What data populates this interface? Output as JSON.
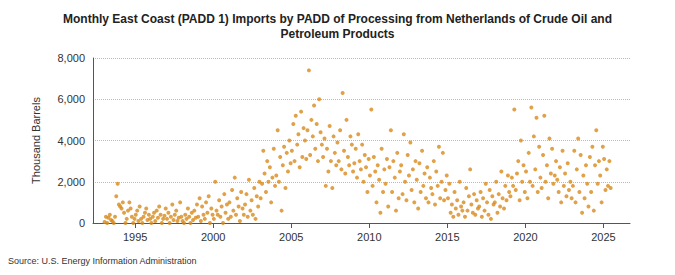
{
  "chart_data": {
    "type": "scatter",
    "title": "Monthly East Coast (PADD 1) Imports by PADD of Processing from Netherlands of Crude Oil and\nPetroleum Products",
    "y_label": "Thousand Barrels",
    "source": "Source: U.S. Energy Information Administration",
    "color": "#d88a1a",
    "marker": "circle",
    "grid": true,
    "xlim": [
      1992.3,
      2026.7
    ],
    "xticks": [
      1995,
      2000,
      2005,
      2010,
      2015,
      2020,
      2025
    ],
    "ylim": [
      0,
      8000
    ],
    "yticks": [
      0,
      {
        "value": 2000,
        "label": "2,000"
      },
      {
        "value": 4000,
        "label": "4,000"
      },
      {
        "value": 6000,
        "label": "6,000"
      },
      {
        "value": 8000,
        "label": "8,000"
      }
    ],
    "x": [
      1993.04,
      1993.13,
      1993.21,
      1993.29,
      1993.38,
      1993.46,
      1993.54,
      1993.63,
      1993.71,
      1993.79,
      1993.88,
      1993.96,
      1994.04,
      1994.13,
      1994.21,
      1994.29,
      1994.38,
      1994.46,
      1994.54,
      1994.63,
      1994.71,
      1994.79,
      1994.88,
      1994.96,
      1995.04,
      1995.13,
      1995.21,
      1995.29,
      1995.38,
      1995.46,
      1995.54,
      1995.63,
      1995.71,
      1995.79,
      1995.88,
      1995.96,
      1996.04,
      1996.13,
      1996.21,
      1996.29,
      1996.38,
      1996.46,
      1996.54,
      1996.63,
      1996.71,
      1996.79,
      1996.88,
      1996.96,
      1997.04,
      1997.13,
      1997.21,
      1997.29,
      1997.38,
      1997.46,
      1997.54,
      1997.63,
      1997.71,
      1997.79,
      1997.88,
      1997.96,
      1998.04,
      1998.13,
      1998.21,
      1998.29,
      1998.38,
      1998.46,
      1998.54,
      1998.63,
      1998.71,
      1998.79,
      1998.88,
      1998.96,
      1999.04,
      1999.13,
      1999.21,
      1999.29,
      1999.38,
      1999.46,
      1999.54,
      1999.63,
      1999.71,
      1999.79,
      1999.88,
      1999.96,
      2000.04,
      2000.13,
      2000.21,
      2000.29,
      2000.38,
      2000.46,
      2000.54,
      2000.63,
      2000.71,
      2000.79,
      2000.88,
      2000.96,
      2001.04,
      2001.13,
      2001.21,
      2001.29,
      2001.38,
      2001.46,
      2001.54,
      2001.63,
      2001.71,
      2001.79,
      2001.88,
      2001.96,
      2002.04,
      2002.13,
      2002.21,
      2002.29,
      2002.38,
      2002.46,
      2002.54,
      2002.63,
      2002.71,
      2002.79,
      2002.88,
      2002.96,
      2003.04,
      2003.13,
      2003.21,
      2003.29,
      2003.38,
      2003.46,
      2003.54,
      2003.63,
      2003.71,
      2003.79,
      2003.88,
      2003.96,
      2004.04,
      2004.13,
      2004.21,
      2004.29,
      2004.38,
      2004.46,
      2004.54,
      2004.63,
      2004.71,
      2004.79,
      2004.88,
      2004.96,
      2005.04,
      2005.13,
      2005.21,
      2005.29,
      2005.38,
      2005.46,
      2005.54,
      2005.63,
      2005.71,
      2005.79,
      2005.88,
      2005.96,
      2006.04,
      2006.13,
      2006.21,
      2006.29,
      2006.38,
      2006.46,
      2006.54,
      2006.63,
      2006.71,
      2006.79,
      2006.88,
      2006.96,
      2007.04,
      2007.13,
      2007.21,
      2007.29,
      2007.38,
      2007.46,
      2007.54,
      2007.63,
      2007.71,
      2007.79,
      2007.88,
      2007.96,
      2008.04,
      2008.13,
      2008.21,
      2008.29,
      2008.38,
      2008.46,
      2008.54,
      2008.63,
      2008.71,
      2008.79,
      2008.88,
      2008.96,
      2009.04,
      2009.13,
      2009.21,
      2009.29,
      2009.38,
      2009.46,
      2009.54,
      2009.63,
      2009.71,
      2009.79,
      2009.88,
      2009.96,
      2010.04,
      2010.13,
      2010.21,
      2010.29,
      2010.38,
      2010.46,
      2010.54,
      2010.63,
      2010.71,
      2010.79,
      2010.88,
      2010.96,
      2011.04,
      2011.13,
      2011.21,
      2011.29,
      2011.38,
      2011.46,
      2011.54,
      2011.63,
      2011.71,
      2011.79,
      2011.88,
      2011.96,
      2012.04,
      2012.13,
      2012.21,
      2012.29,
      2012.38,
      2012.46,
      2012.54,
      2012.63,
      2012.71,
      2012.79,
      2012.88,
      2012.96,
      2013.04,
      2013.13,
      2013.21,
      2013.29,
      2013.38,
      2013.46,
      2013.54,
      2013.63,
      2013.71,
      2013.79,
      2013.88,
      2013.96,
      2014.04,
      2014.13,
      2014.21,
      2014.29,
      2014.38,
      2014.46,
      2014.54,
      2014.63,
      2014.71,
      2014.79,
      2014.88,
      2014.96,
      2015.04,
      2015.13,
      2015.21,
      2015.29,
      2015.38,
      2015.46,
      2015.54,
      2015.63,
      2015.71,
      2015.79,
      2015.88,
      2015.96,
      2016.04,
      2016.13,
      2016.21,
      2016.29,
      2016.38,
      2016.46,
      2016.54,
      2016.63,
      2016.71,
      2016.79,
      2016.88,
      2016.96,
      2017.04,
      2017.13,
      2017.21,
      2017.29,
      2017.38,
      2017.46,
      2017.54,
      2017.63,
      2017.71,
      2017.79,
      2017.88,
      2017.96,
      2018.04,
      2018.13,
      2018.21,
      2018.29,
      2018.38,
      2018.46,
      2018.54,
      2018.63,
      2018.71,
      2018.79,
      2018.88,
      2018.96,
      2019.04,
      2019.13,
      2019.21,
      2019.29,
      2019.38,
      2019.46,
      2019.54,
      2019.63,
      2019.71,
      2019.79,
      2019.88,
      2019.96,
      2020.04,
      2020.13,
      2020.21,
      2020.29,
      2020.38,
      2020.46,
      2020.54,
      2020.63,
      2020.71,
      2020.79,
      2020.88,
      2020.96,
      2021.04,
      2021.13,
      2021.21,
      2021.29,
      2021.38,
      2021.46,
      2021.54,
      2021.63,
      2021.71,
      2021.79,
      2021.88,
      2021.96,
      2022.04,
      2022.13,
      2022.21,
      2022.29,
      2022.38,
      2022.46,
      2022.54,
      2022.63,
      2022.71,
      2022.79,
      2022.88,
      2022.96,
      2023.04,
      2023.13,
      2023.21,
      2023.29,
      2023.38,
      2023.46,
      2023.54,
      2023.63,
      2023.71,
      2023.79,
      2023.88,
      2023.96,
      2024.04,
      2024.13,
      2024.21,
      2024.29,
      2024.38,
      2024.46,
      2024.54,
      2024.63,
      2024.71,
      2024.79,
      2024.88,
      2024.96,
      2025.04,
      2025.13,
      2025.21,
      2025.29,
      2025.38,
      2025.46
    ],
    "values": [
      50,
      300,
      0,
      250,
      400,
      150,
      100,
      0,
      300,
      1300,
      1900,
      900,
      800,
      700,
      1000,
      500,
      0,
      200,
      600,
      1000,
      700,
      300,
      0,
      200,
      400,
      600,
      100,
      800,
      200,
      0,
      300,
      500,
      700,
      150,
      400,
      200,
      0,
      300,
      500,
      100,
      600,
      250,
      800,
      400,
      0,
      200,
      350,
      700,
      200,
      500,
      0,
      300,
      900,
      150,
      400,
      600,
      100,
      250,
      1000,
      300,
      100,
      0,
      400,
      200,
      700,
      300,
      0,
      500,
      150,
      600,
      250,
      900,
      300,
      1200,
      100,
      800,
      400,
      200,
      1000,
      500,
      1300,
      0,
      700,
      400,
      200,
      2000,
      600,
      400,
      1100,
      300,
      800,
      0,
      1400,
      500,
      900,
      200,
      1000,
      300,
      1600,
      600,
      2200,
      400,
      1200,
      800,
      100,
      1500,
      700,
      400,
      900,
      1400,
      300,
      2100,
      600,
      1100,
      400,
      1700,
      200,
      1300,
      800,
      2000,
      1200,
      1900,
      3500,
      2400,
      1500,
      3000,
      2000,
      2700,
      1000,
      2200,
      3600,
      1800,
      2300,
      4500,
      2000,
      3200,
      600,
      2800,
      3700,
      1700,
      3400,
      2500,
      4000,
      2900,
      3500,
      4800,
      3000,
      5200,
      3800,
      4300,
      2700,
      5400,
      3200,
      4600,
      4000,
      3100,
      4500,
      7400,
      3300,
      5000,
      4200,
      5700,
      3600,
      4800,
      3000,
      6000,
      4400,
      3800,
      3200,
      4100,
      1800,
      3600,
      2500,
      4700,
      3000,
      1700,
      4200,
      3400,
      2800,
      3900,
      3000,
      4500,
      2600,
      6300,
      3500,
      2400,
      5000,
      3200,
      2800,
      4200,
      3800,
      2500,
      2900,
      3600,
      2200,
      4300,
      3000,
      2600,
      3800,
      2000,
      3300,
      2700,
      1500,
      3100,
      2300,
      5500,
      1800,
      3200,
      2500,
      1000,
      2800,
      2100,
      500,
      3600,
      1500,
      2600,
      1900,
      3100,
      800,
      2700,
      4500,
      1500,
      3000,
      2200,
      600,
      3400,
      1200,
      2500,
      2800,
      1400,
      4300,
      2000,
      1100,
      3300,
      2300,
      3900,
      1600,
      2600,
      1000,
      3000,
      2100,
      700,
      2900,
      1500,
      3500,
      1800,
      2400,
      1200,
      2700,
      1000,
      2200,
      1700,
      1400,
      3000,
      900,
      2500,
      1800,
      3700,
      1200,
      2000,
      3400,
      1100,
      1600,
      2300,
      1200,
      1900,
      500,
      900,
      300,
      1500,
      700,
      1100,
      400,
      2000,
      800,
      600,
      1000,
      300,
      1700,
      600,
      1300,
      2600,
      900,
      500,
      1400,
      400,
      1100,
      700,
      800,
      1500,
      300,
      1200,
      600,
      1900,
      1000,
      400,
      1600,
      200,
      1300,
      900,
      1000,
      2000,
      500,
      1400,
      800,
      2500,
      1200,
      700,
      1800,
      1100,
      2300,
      1500,
      1300,
      2200,
      1800,
      5500,
      1600,
      2400,
      3000,
      1100,
      4000,
      2000,
      2800,
      1500,
      2500,
      1200,
      3400,
      2000,
      5600,
      1800,
      4200,
      2600,
      5100,
      1500,
      3700,
      2200,
      1700,
      3300,
      5200,
      2000,
      2800,
      1200,
      4100,
      2400,
      3600,
      1900,
      2300,
      3000,
      2100,
      1500,
      2700,
      1000,
      3500,
      1800,
      2400,
      1300,
      2900,
      1600,
      2000,
      1200,
      1800,
      3500,
      1000,
      2600,
      4100,
      1500,
      3300,
      500,
      2300,
      1200,
      2800,
      1900,
      800,
      3200,
      1500,
      3700,
      600,
      2800,
      4500,
      1900,
      3000,
      2300,
      1000,
      3700,
      3100,
      1600,
      2600,
      1800,
      3000,
      1700
    ]
  }
}
